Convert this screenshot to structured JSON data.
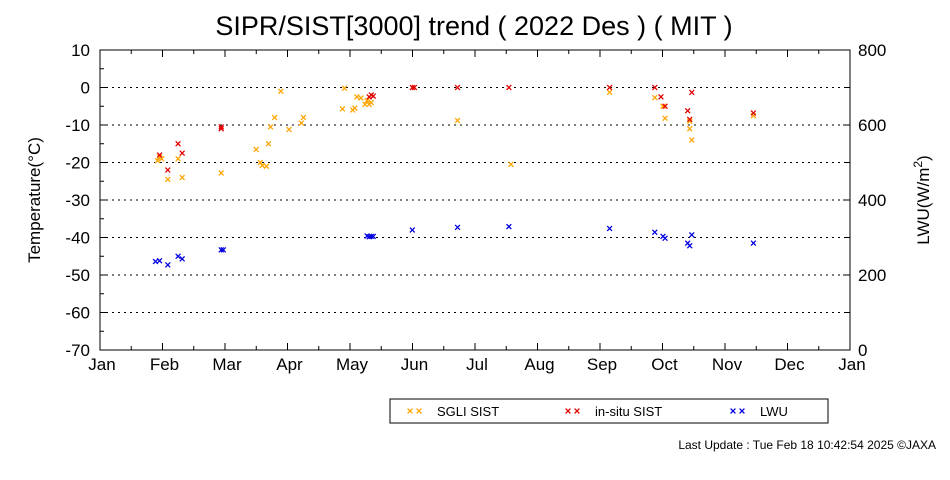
{
  "chart_data": {
    "type": "scatter",
    "title": "SIPR/SIST[3000] trend ( 2022 Des ) ( MIT )",
    "ylabel_left": "Temperature(°C)",
    "ylabel_right_main": "LWU(W/m",
    "ylabel_right_sup": "2",
    "ylabel_right_end": ")",
    "ylim_left": [
      -70,
      10
    ],
    "ylim_right": [
      0,
      800
    ],
    "yticks_left": [
      "10",
      "0",
      "-10",
      "-20",
      "-30",
      "-40",
      "-50",
      "-60",
      "-70"
    ],
    "yticks_right": [
      "800",
      "600",
      "400",
      "200",
      "0"
    ],
    "x_months": [
      "Jan",
      "Feb",
      "Mar",
      "Apr",
      "May",
      "Jun",
      "Jul",
      "Aug",
      "Sep",
      "Oct",
      "Nov",
      "Dec",
      "Jan"
    ],
    "grid": "dotted horizontal",
    "legend_position": "bottom-right",
    "series": [
      {
        "name": "SGLI SIST",
        "color": "#ffa500",
        "axis": "left",
        "points": [
          {
            "x": "2022-01-29",
            "y": -19.5
          },
          {
            "x": "2022-01-30",
            "y": -18.5
          },
          {
            "x": "2022-01-31",
            "y": -19.0
          },
          {
            "x": "2022-02-03",
            "y": -24.5
          },
          {
            "x": "2022-02-08",
            "y": -19.0
          },
          {
            "x": "2022-02-10",
            "y": -24.0
          },
          {
            "x": "2022-03-01",
            "y": -22.8
          },
          {
            "x": "2022-03-18",
            "y": -16.5
          },
          {
            "x": "2022-03-20",
            "y": -20.0
          },
          {
            "x": "2022-03-21",
            "y": -20.8
          },
          {
            "x": "2022-03-23",
            "y": -21.0
          },
          {
            "x": "2022-03-24",
            "y": -15.0
          },
          {
            "x": "2022-03-25",
            "y": -10.5
          },
          {
            "x": "2022-03-27",
            "y": -8.0
          },
          {
            "x": "2022-03-30",
            "y": -1.0
          },
          {
            "x": "2022-04-03",
            "y": -11.2
          },
          {
            "x": "2022-04-09",
            "y": -9.5
          },
          {
            "x": "2022-04-10",
            "y": -8.0
          },
          {
            "x": "2022-04-29",
            "y": -5.7
          },
          {
            "x": "2022-04-30",
            "y": -0.2
          },
          {
            "x": "2022-05-04",
            "y": -6.0
          },
          {
            "x": "2022-05-05",
            "y": -5.5
          },
          {
            "x": "2022-05-06",
            "y": -2.5
          },
          {
            "x": "2022-05-08",
            "y": -2.8
          },
          {
            "x": "2022-05-10",
            "y": -4.5
          },
          {
            "x": "2022-05-11",
            "y": -3.5
          },
          {
            "x": "2022-05-12",
            "y": -4.5
          },
          {
            "x": "2022-05-13",
            "y": -4.0
          },
          {
            "x": "2022-06-24",
            "y": -8.8
          },
          {
            "x": "2022-07-20",
            "y": -20.5
          },
          {
            "x": "2022-09-06",
            "y": -1.3
          },
          {
            "x": "2022-09-28",
            "y": -2.7
          },
          {
            "x": "2022-10-02",
            "y": -5.0
          },
          {
            "x": "2022-10-03",
            "y": -8.2
          },
          {
            "x": "2022-10-15",
            "y": -9.0
          },
          {
            "x": "2022-10-15",
            "y": -11.0
          },
          {
            "x": "2022-10-16",
            "y": -14.0
          },
          {
            "x": "2022-11-15",
            "y": -7.5
          }
        ]
      },
      {
        "name": "in-situ SIST",
        "color": "#e00000",
        "axis": "left",
        "points": [
          {
            "x": "2022-01-30",
            "y": -18.0
          },
          {
            "x": "2022-02-03",
            "y": -22.0
          },
          {
            "x": "2022-02-08",
            "y": -15.0
          },
          {
            "x": "2022-02-10",
            "y": -17.5
          },
          {
            "x": "2022-03-01",
            "y": -11.0
          },
          {
            "x": "2022-03-01",
            "y": -10.5
          },
          {
            "x": "2022-05-12",
            "y": -2.5
          },
          {
            "x": "2022-05-13",
            "y": -2.0
          },
          {
            "x": "2022-05-14",
            "y": -2.3
          },
          {
            "x": "2022-06-02",
            "y": 0.0
          },
          {
            "x": "2022-06-03",
            "y": 0.0
          },
          {
            "x": "2022-06-24",
            "y": 0.0
          },
          {
            "x": "2022-07-19",
            "y": 0.0
          },
          {
            "x": "2022-09-06",
            "y": 0.0
          },
          {
            "x": "2022-09-28",
            "y": 0.0
          },
          {
            "x": "2022-10-01",
            "y": -2.5
          },
          {
            "x": "2022-10-03",
            "y": -5.0
          },
          {
            "x": "2022-10-14",
            "y": -6.2
          },
          {
            "x": "2022-10-15",
            "y": -8.5
          },
          {
            "x": "2022-10-16",
            "y": -1.3
          },
          {
            "x": "2022-11-15",
            "y": -6.8
          }
        ]
      },
      {
        "name": "LWU",
        "color": "#0000e0",
        "axis": "right",
        "points": [
          {
            "x": "2022-01-28",
            "y": 236
          },
          {
            "x": "2022-01-30",
            "y": 238
          },
          {
            "x": "2022-02-03",
            "y": 227
          },
          {
            "x": "2022-02-08",
            "y": 250
          },
          {
            "x": "2022-02-10",
            "y": 243
          },
          {
            "x": "2022-03-01",
            "y": 267
          },
          {
            "x": "2022-03-02",
            "y": 267
          },
          {
            "x": "2022-05-11",
            "y": 304
          },
          {
            "x": "2022-05-12",
            "y": 302
          },
          {
            "x": "2022-05-13",
            "y": 303
          },
          {
            "x": "2022-05-14",
            "y": 303
          },
          {
            "x": "2022-06-02",
            "y": 320
          },
          {
            "x": "2022-06-24",
            "y": 327
          },
          {
            "x": "2022-07-19",
            "y": 329
          },
          {
            "x": "2022-09-06",
            "y": 324
          },
          {
            "x": "2022-09-28",
            "y": 314
          },
          {
            "x": "2022-10-02",
            "y": 303
          },
          {
            "x": "2022-10-03",
            "y": 298
          },
          {
            "x": "2022-10-14",
            "y": 285
          },
          {
            "x": "2022-10-15",
            "y": 278
          },
          {
            "x": "2022-10-16",
            "y": 307
          },
          {
            "x": "2022-11-15",
            "y": 285
          }
        ]
      }
    ],
    "footer": "Last Update : Tue Feb 18 10:42:54 2025  ©JAXA"
  }
}
